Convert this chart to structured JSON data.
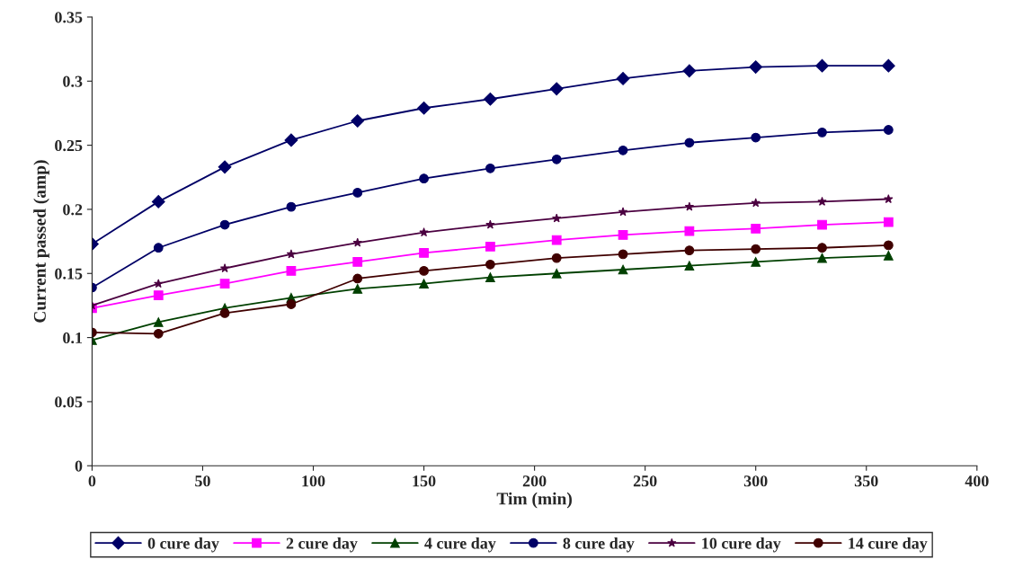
{
  "chart_data": {
    "type": "line",
    "xlabel": "Tim (min)",
    "ylabel": "Current passed (amp)",
    "x": [
      0,
      30,
      60,
      90,
      120,
      150,
      180,
      210,
      240,
      270,
      300,
      330,
      360
    ],
    "xlim": [
      0,
      400
    ],
    "xticks": [
      0,
      50,
      100,
      150,
      200,
      250,
      300,
      350,
      400
    ],
    "ylim": [
      0,
      0.35
    ],
    "yticks": [
      0,
      0.05,
      0.1,
      0.15,
      0.2,
      0.25,
      0.3,
      0.35
    ],
    "grid": false,
    "legend": "bottom",
    "series": [
      {
        "name": "0 cure day",
        "color": "#000066",
        "marker": "diamond",
        "values": [
          0.173,
          0.206,
          0.233,
          0.254,
          0.269,
          0.279,
          0.286,
          0.294,
          0.302,
          0.308,
          0.311,
          0.312,
          0.312
        ]
      },
      {
        "name": "2 cure day",
        "color": "#ff00ff",
        "marker": "square",
        "values": [
          0.123,
          0.133,
          0.142,
          0.152,
          0.159,
          0.166,
          0.171,
          0.176,
          0.18,
          0.183,
          0.185,
          0.188,
          0.19
        ]
      },
      {
        "name": "4 cure day",
        "color": "#004000",
        "marker": "triangle",
        "values": [
          0.098,
          0.112,
          0.123,
          0.131,
          0.138,
          0.142,
          0.147,
          0.15,
          0.153,
          0.156,
          0.159,
          0.162,
          0.164
        ]
      },
      {
        "name": "8 cure day",
        "color": "#000066",
        "marker": "circle",
        "values": [
          0.139,
          0.17,
          0.188,
          0.202,
          0.213,
          0.224,
          0.232,
          0.239,
          0.246,
          0.252,
          0.256,
          0.26,
          0.262
        ]
      },
      {
        "name": "10 cure day",
        "color": "#4b0040",
        "marker": "star",
        "values": [
          0.125,
          0.142,
          0.154,
          0.165,
          0.174,
          0.182,
          0.188,
          0.193,
          0.198,
          0.202,
          0.205,
          0.206,
          0.208
        ]
      },
      {
        "name": "14 cure day",
        "color": "#400000",
        "marker": "circle",
        "values": [
          0.104,
          0.103,
          0.119,
          0.126,
          0.146,
          0.152,
          0.157,
          0.162,
          0.165,
          0.168,
          0.169,
          0.17,
          0.172
        ]
      }
    ]
  }
}
